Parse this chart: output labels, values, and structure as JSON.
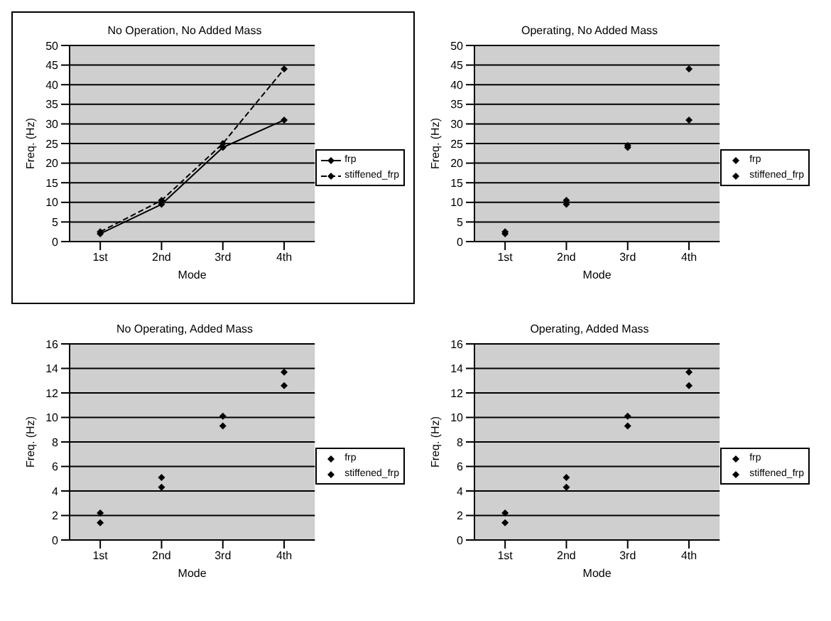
{
  "chart_data": [
    {
      "type": "line",
      "title": "No Operation, No Added Mass",
      "xlabel": "Mode",
      "ylabel": "Freq. (Hz)",
      "categories": [
        "1st",
        "2nd",
        "3rd",
        "4th"
      ],
      "series": [
        {
          "name": "frp",
          "color": "#000000",
          "values": [
            2,
            9.5,
            24,
            31
          ],
          "line_style": "solid"
        },
        {
          "name": "stiffened_frp",
          "color": "#000000",
          "values": [
            2.5,
            10.5,
            25,
            44
          ],
          "line_style": "dashed"
        }
      ],
      "ylim": [
        0,
        50
      ],
      "yticks": [
        0,
        5,
        10,
        15,
        20,
        25,
        30,
        35,
        40,
        45,
        50
      ],
      "grid": "y",
      "legend": "right",
      "marker": "diamond"
    },
    {
      "type": "scatter",
      "title": "Operating, No Added Mass",
      "xlabel": "Mode",
      "ylabel": "Freq. (Hz)",
      "categories": [
        "1st",
        "2nd",
        "3rd",
        "4th"
      ],
      "series": [
        {
          "name": "frp",
          "color": "#000000",
          "values": [
            2,
            9.5,
            24,
            31
          ]
        },
        {
          "name": "stiffened_frp",
          "color": "#000000",
          "values": [
            2.5,
            10.5,
            24.5,
            44
          ]
        }
      ],
      "ylim": [
        0,
        50
      ],
      "yticks": [
        0,
        5,
        10,
        15,
        20,
        25,
        30,
        35,
        40,
        45,
        50
      ],
      "grid": "y",
      "legend": "right",
      "marker": "diamond"
    },
    {
      "type": "scatter",
      "title": "No Operating, Added Mass",
      "xlabel": "Mode",
      "ylabel": "Freq. (Hz)",
      "categories": [
        "1st",
        "2nd",
        "3rd",
        "4th"
      ],
      "series": [
        {
          "name": "frp",
          "color": "#000000",
          "values": [
            1.4,
            4.3,
            9.3,
            12.6
          ]
        },
        {
          "name": "stiffened_frp",
          "color": "#000000",
          "values": [
            2.2,
            5.1,
            10.1,
            13.7
          ]
        }
      ],
      "ylim": [
        0,
        16
      ],
      "yticks": [
        0,
        2,
        4,
        6,
        8,
        10,
        12,
        14,
        16
      ],
      "grid": "y",
      "legend": "right",
      "marker": "diamond"
    },
    {
      "type": "scatter",
      "title": "Operating, Added Mass",
      "xlabel": "Mode",
      "ylabel": "Freq. (Hz)",
      "categories": [
        "1st",
        "2nd",
        "3rd",
        "4th"
      ],
      "series": [
        {
          "name": "frp",
          "color": "#000000",
          "values": [
            1.4,
            4.3,
            9.3,
            12.6
          ]
        },
        {
          "name": "stiffened_frp",
          "color": "#000000",
          "values": [
            2.2,
            5.1,
            10.1,
            13.7
          ]
        }
      ],
      "ylim": [
        0,
        16
      ],
      "yticks": [
        0,
        2,
        4,
        6,
        8,
        10,
        12,
        14,
        16
      ],
      "grid": "y",
      "legend": "right",
      "marker": "diamond"
    }
  ]
}
